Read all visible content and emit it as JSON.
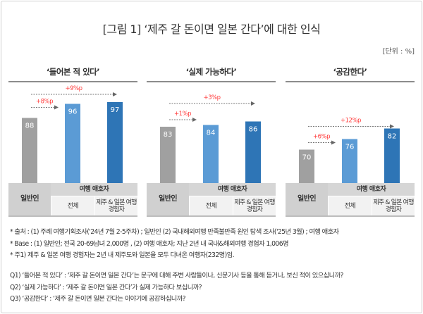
{
  "title": "[그림 1] ‘제주 갈 돈이면 일본 간다’에 대한 인식",
  "unit": "[단위 : %]",
  "chart_data": [
    {
      "type": "bar",
      "title": "‘들어본 적 있다’",
      "categories": [
        "일반인",
        "전체",
        "제주 & 일본 여행 경험자"
      ],
      "group_label": "여행 애호자",
      "values": [
        88,
        96,
        97
      ],
      "annotations": [
        {
          "from": "일반인",
          "to": "전체",
          "text": "+8%p"
        },
        {
          "from": "일반인",
          "to": "제주 & 일본 여행 경험자",
          "text": "+9%p"
        }
      ]
    },
    {
      "type": "bar",
      "title": "‘실제 가능하다’",
      "categories": [
        "일반인",
        "전체",
        "제주 & 일본 여행 경험자"
      ],
      "group_label": "여행 애호자",
      "values": [
        83,
        84,
        86
      ],
      "annotations": [
        {
          "from": "일반인",
          "to": "전체",
          "text": "+1%p"
        },
        {
          "from": "일반인",
          "to": "제주 & 일본 여행 경험자",
          "text": "+3%p"
        }
      ]
    },
    {
      "type": "bar",
      "title": "‘공감한다’",
      "categories": [
        "일반인",
        "전체",
        "제주 & 일본 여행 경험자"
      ],
      "group_label": "여행 애호자",
      "values": [
        70,
        76,
        82
      ],
      "annotations": [
        {
          "from": "일반인",
          "to": "전체",
          "text": "+6%p"
        },
        {
          "from": "일반인",
          "to": "제주 & 일본 여행 경험자",
          "text": "+12%p"
        }
      ]
    }
  ],
  "colors": {
    "general": "#a0a0a0",
    "all": "#5b9bd5",
    "jeju_japan": "#2e75b6",
    "annotation": "#ff3b3b"
  },
  "table": {
    "general": "일반인",
    "group": "여행 애호자",
    "all": "전체",
    "jeju_line1": "제주 & 일본 여행",
    "jeju_line2": "경험자"
  },
  "notes": [
    "* 출처 : (1) 주례 여행기획조사('24년 7월 2-5주차) ; 일반인 (2) 국내해외여행 만족불만족 원인 탐색 조사('25년 3월) ; 여행 애호자",
    "* Base : (1) 일반인; 전국 20-69남녀 2,000명 , (2) 여행 애호자; 지난 2년 내 국내&해외여행 경험자 1,006명",
    "* 주1) 제주 & 일본 여행 경험자는 2년 내 제주도와 일본을 모두 다녀온 여행자(232명)임."
  ],
  "questions": [
    "Q1) ‘들어본 적 있다’ : ‘제주 갈 돈이면 일본 간다’는 문구에 대해 주변 사람들이나, 신문기사 등을 통해 듣거나, 보신 적이 있으십니까?",
    "Q2) ‘실제 가능하다’ : ‘제주 갈 돈이면 일본 간다’가 실제 가능하다 보십니까?",
    "Q3) ‘공감한다’ : ‘제주 갈 돈이면 일본 간다는 이야기에 공감하십니까?"
  ]
}
